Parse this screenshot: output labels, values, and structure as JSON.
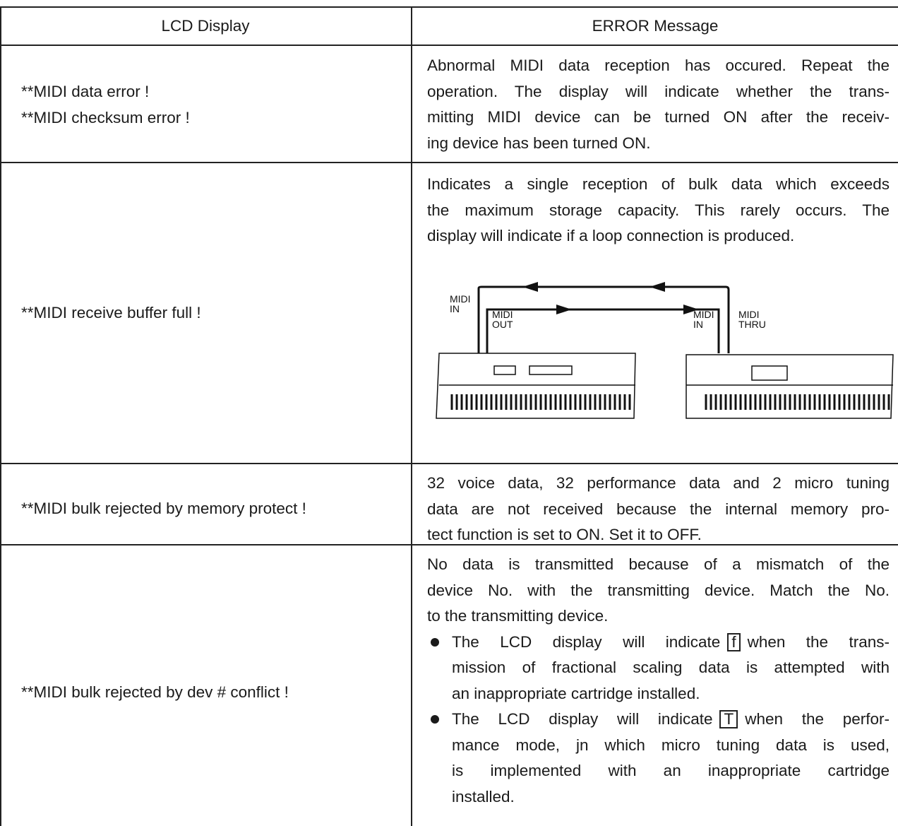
{
  "table": {
    "header": [
      "LCD Display",
      "ERROR Message"
    ],
    "rows": [
      {
        "lcd": [
          "**MIDI data error !",
          "**MIDI checksum error !"
        ],
        "error": [
          "Abnormal MIDI data reception has occured. Repeat the",
          "operation. The display will indicate whether the trans-",
          "mitting MIDI device can be turned ON after the receiv-",
          "ing device has been turned ON."
        ]
      },
      {
        "lcd": [
          "**MIDI receive buffer full !"
        ],
        "error": [
          "Indicates a single reception of bulk data which exceeds",
          "the maximum storage capacity. This rarely occurs. The",
          "display will indicate if a loop connection is produced."
        ],
        "diagram": {
          "labels": [
            [
              "MIDI",
              "IN"
            ],
            [
              "MIDI",
              "OUT"
            ],
            [
              "MIDI",
              "IN"
            ],
            [
              "MIDI",
              "THRU"
            ]
          ]
        }
      },
      {
        "lcd": [
          "**MIDI bulk rejected by memory protect !"
        ],
        "error": [
          "32 voice data, 32 performance data and 2 micro tuning",
          "data are not received because the internal memory pro-",
          "tect function is set to ON. Set it to OFF."
        ]
      },
      {
        "lcd": [
          "**MIDI bulk rejected by dev # conflict !"
        ],
        "error": [
          "No data is transmitted because of a mismatch of the",
          "device No. with the transmitting device. Match the No.",
          "to the transmitting device."
        ],
        "bullets": [
          {
            "first": {
              "before": "The LCD display will indicate",
              "key": "f",
              "after": "when the trans-"
            },
            "lines": [
              "mission of fractional scaling data is attempted with",
              "an inappropriate cartridge installed."
            ]
          },
          {
            "first": {
              "before": "The LCD display will indicate",
              "key": "T",
              "after": "when the perfor-"
            },
            "lines": [
              "mance mode, jn which micro tuning data is used,",
              "is implemented with an inappropriate cartridge",
              "installed."
            ]
          }
        ]
      }
    ]
  }
}
